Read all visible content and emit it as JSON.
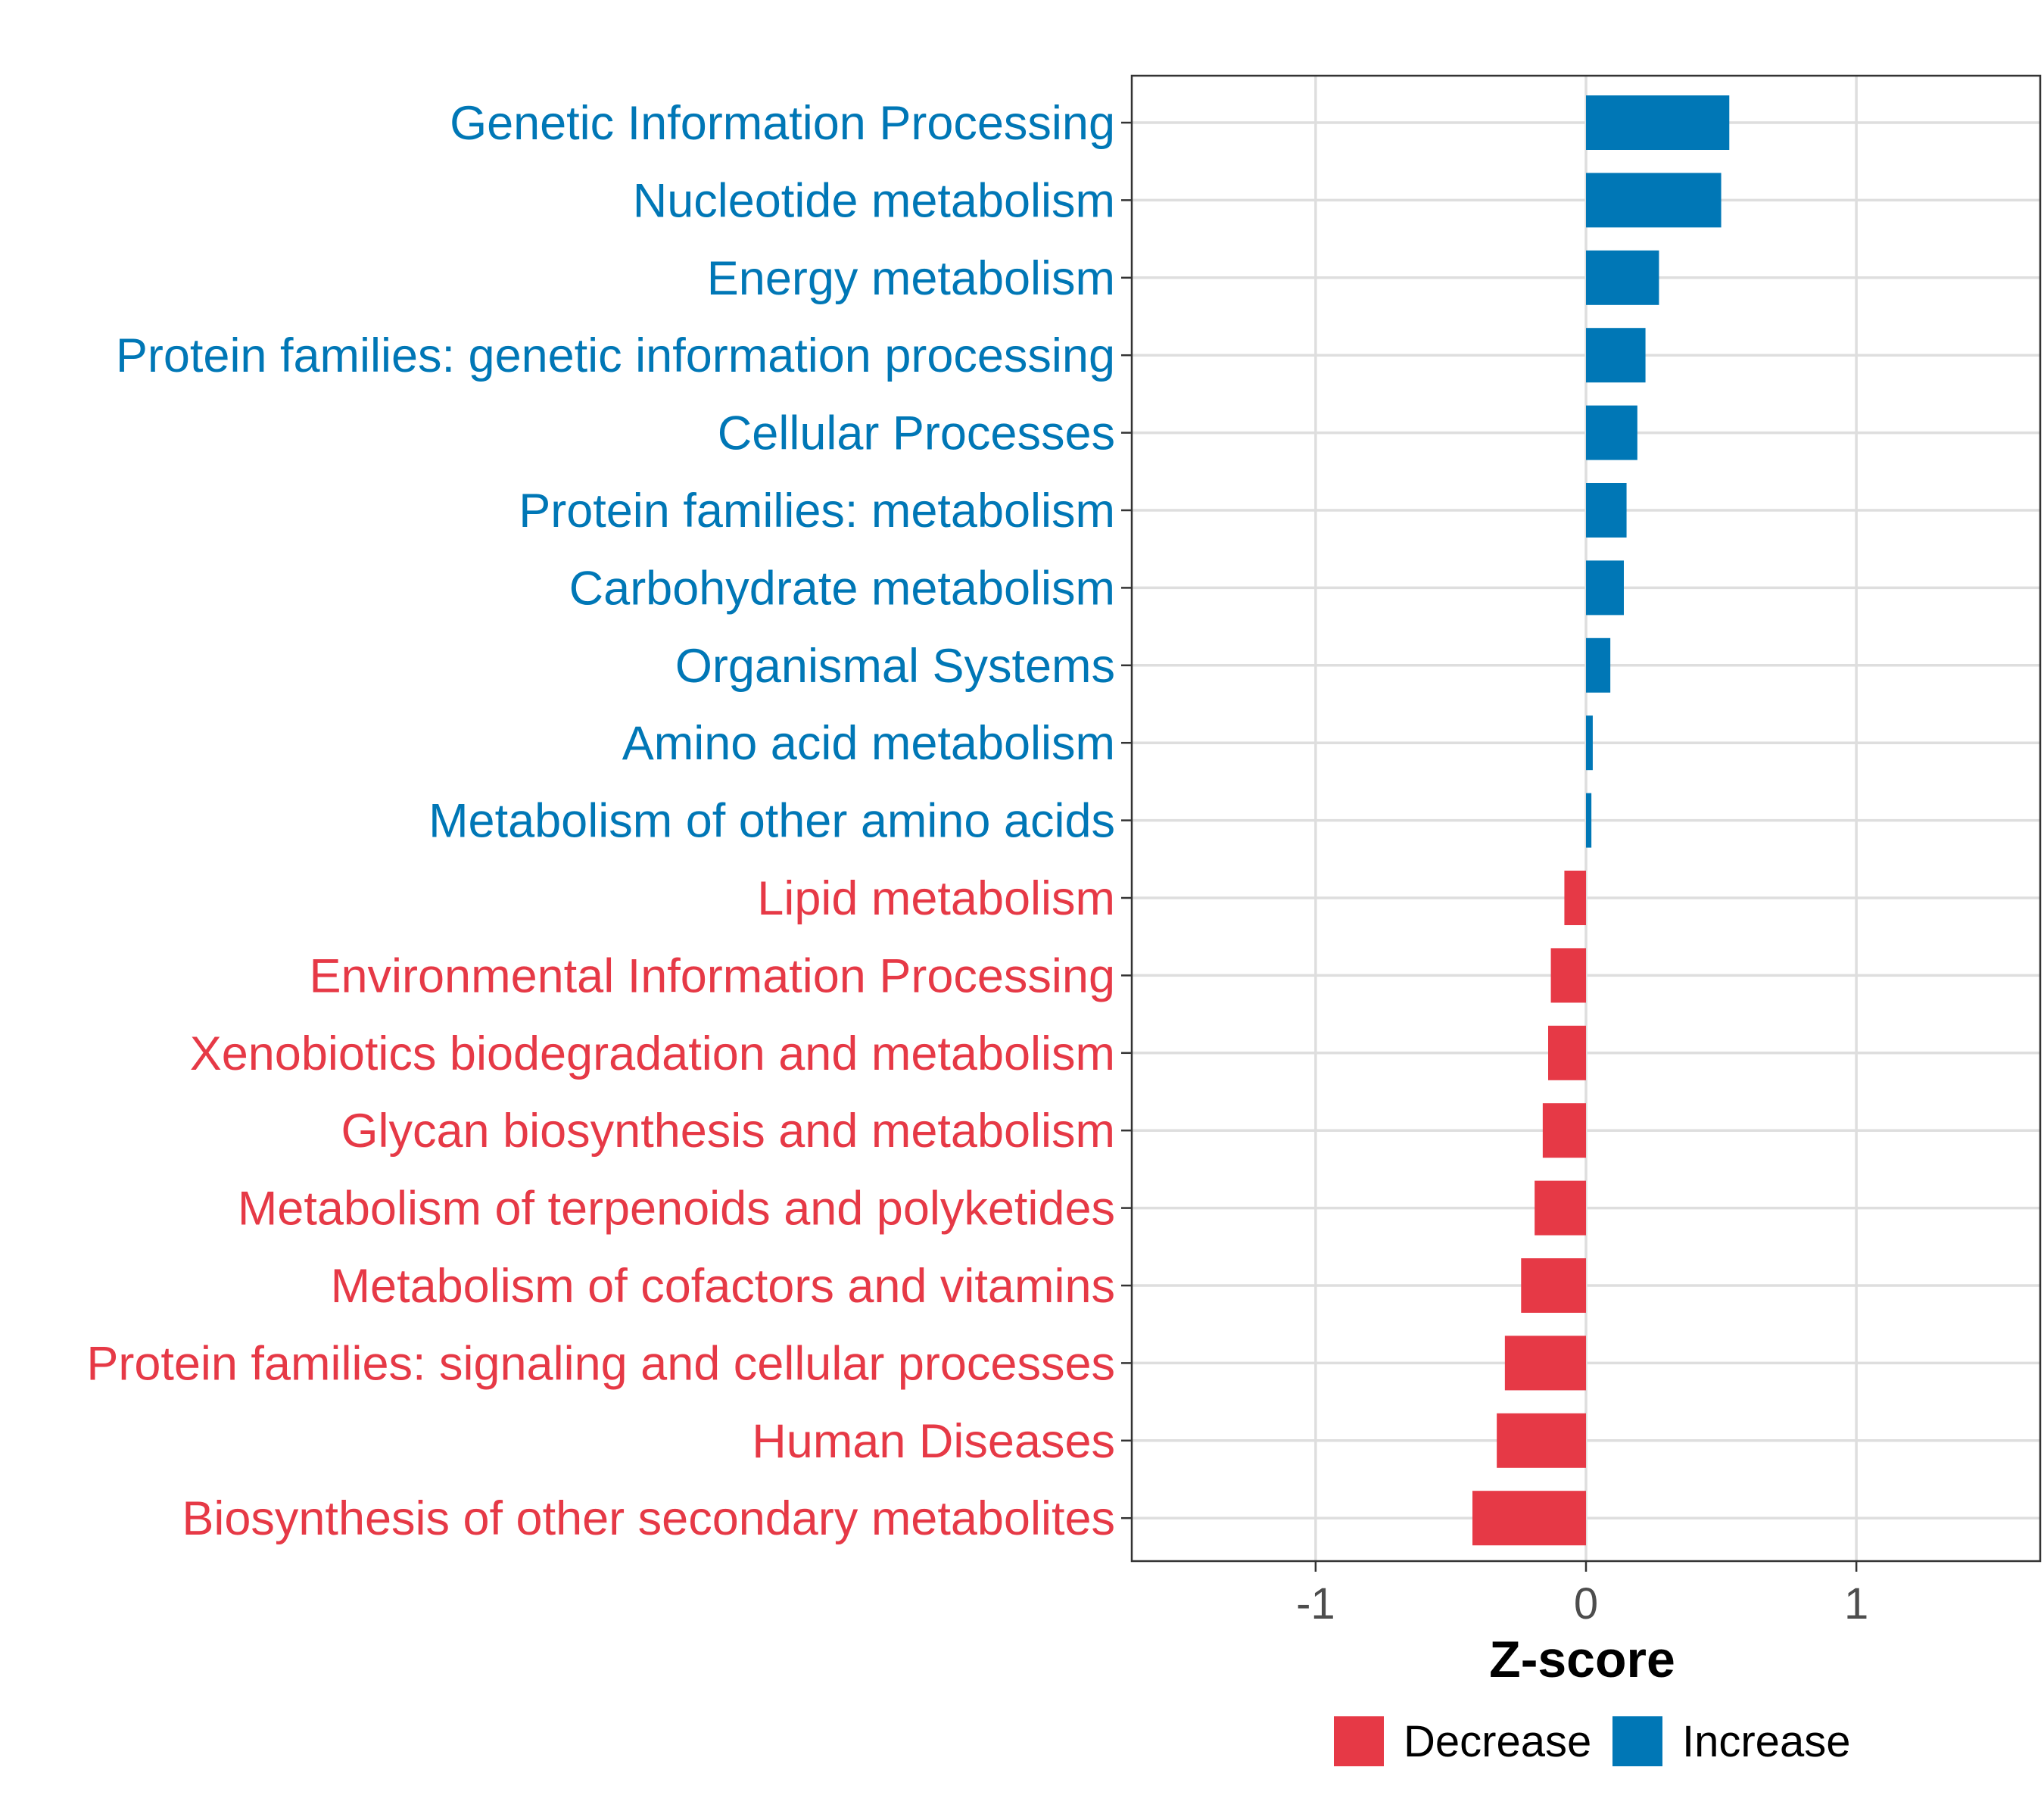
{
  "chart_data": {
    "type": "bar",
    "orientation": "horizontal",
    "categories": [
      "Genetic Information Processing",
      "Nucleotide metabolism",
      "Energy metabolism",
      "Protein families: genetic information processing",
      "Cellular Processes",
      "Protein families: metabolism",
      "Carbohydrate metabolism",
      "Organismal Systems",
      "Amino acid metabolism",
      "Metabolism of other amino acids",
      "Lipid metabolism",
      "Environmental Information Processing",
      "Xenobiotics biodegradation and metabolism",
      "Glycan biosynthesis and metabolism",
      "Metabolism of terpenoids and polyketides",
      "Metabolism of cofactors and vitamins",
      "Protein families: signaling and cellular processes",
      "Human Diseases",
      "Biosynthesis of other secondary metabolites"
    ],
    "values": [
      0.53,
      0.5,
      0.27,
      0.22,
      0.19,
      0.15,
      0.14,
      0.09,
      0.025,
      0.02,
      -0.08,
      -0.13,
      -0.14,
      -0.16,
      -0.19,
      -0.24,
      -0.3,
      -0.33,
      -0.42
    ],
    "groups": [
      "Increase",
      "Increase",
      "Increase",
      "Increase",
      "Increase",
      "Increase",
      "Increase",
      "Increase",
      "Increase",
      "Increase",
      "Decrease",
      "Decrease",
      "Decrease",
      "Decrease",
      "Decrease",
      "Decrease",
      "Decrease",
      "Decrease",
      "Decrease"
    ],
    "xlabel": "Z-score",
    "ylabel": "",
    "xlim": [
      -1.68,
      1.68
    ],
    "xticks": [
      -1,
      0,
      1
    ],
    "xtick_labels": [
      "-1",
      "0",
      "1"
    ],
    "grid": true,
    "legend": {
      "placement": "bottom",
      "entries": [
        {
          "label": "Decrease",
          "color": "#e63946"
        },
        {
          "label": "Increase",
          "color": "#0077b6"
        }
      ]
    },
    "colors": {
      "Decrease": "#e63946",
      "Increase": "#0077b6"
    }
  }
}
